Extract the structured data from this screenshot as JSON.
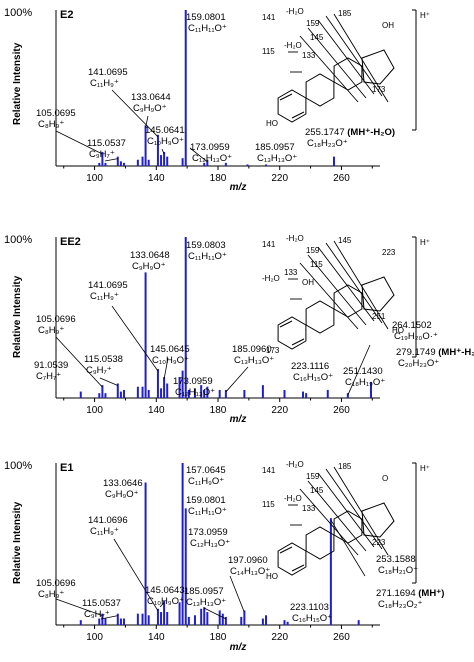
{
  "figure": {
    "x_axis_label": "m/z",
    "y_axis_label": "Relative Intensity",
    "hplus": "H⁺",
    "bar_color": "#1f1fcc"
  },
  "chart_data": [
    {
      "type": "bar",
      "name": "E2",
      "top_label": "100%",
      "xlim": [
        75,
        285
      ],
      "ylim": [
        0,
        100
      ],
      "xticks": [
        100,
        140,
        180,
        220,
        260
      ],
      "peaks": [
        {
          "mz": 103.05,
          "rel": 2
        },
        {
          "mz": 105.07,
          "rel": 9
        },
        {
          "mz": 107.05,
          "rel": 2
        },
        {
          "mz": 115.05,
          "rel": 6
        },
        {
          "mz": 117.07,
          "rel": 3
        },
        {
          "mz": 119.09,
          "rel": 2
        },
        {
          "mz": 128.06,
          "rel": 4
        },
        {
          "mz": 131.09,
          "rel": 6
        },
        {
          "mz": 133.06,
          "rel": 26
        },
        {
          "mz": 135.08,
          "rel": 4
        },
        {
          "mz": 141.07,
          "rel": 20
        },
        {
          "mz": 143.09,
          "rel": 7
        },
        {
          "mz": 145.06,
          "rel": 9
        },
        {
          "mz": 147.08,
          "rel": 6
        },
        {
          "mz": 157.06,
          "rel": 5
        },
        {
          "mz": 159.08,
          "rel": 100
        },
        {
          "mz": 171.08,
          "rel": 2
        },
        {
          "mz": 173.1,
          "rel": 4
        },
        {
          "mz": 185.1,
          "rel": 2
        },
        {
          "mz": 199.1,
          "rel": 1
        },
        {
          "mz": 211.1,
          "rel": 1
        },
        {
          "mz": 255.17,
          "rel": 6
        }
      ],
      "annotations": [
        {
          "mz_label": "159.0801",
          "formula": "C₁₁H₁₁O⁺"
        },
        {
          "mz_label": "141.0695",
          "formula": "C₁₁H₉⁺"
        },
        {
          "mz_label": "133.0644",
          "formula": "C₉H₉O⁺"
        },
        {
          "mz_label": "105.0695",
          "formula": "C₈H₉⁺"
        },
        {
          "mz_label": "145.0641",
          "formula": "C₁₀H₉O⁺"
        },
        {
          "mz_label": "115.0537",
          "formula": "C₉H₇⁺"
        },
        {
          "mz_label": "173.0959",
          "formula": "C₁₂H₁₃O⁺"
        },
        {
          "mz_label": "185.0957",
          "formula": "C₁₃H₁₃O⁺"
        },
        {
          "mz_label": "255.1747",
          "suffix": "(MH⁺-H₂O)",
          "formula": "C₁₈H₂₃O⁺"
        }
      ],
      "structure_labels": [
        "141",
        "-H₂O",
        "159",
        "185",
        "145",
        "115",
        "-H₂O",
        "133",
        "173",
        "OH",
        "HO"
      ]
    },
    {
      "type": "bar",
      "name": "EE2",
      "top_label": "100%",
      "xlim": [
        75,
        285
      ],
      "ylim": [
        0,
        100
      ],
      "xticks": [
        100,
        140,
        180,
        220,
        260
      ],
      "peaks": [
        {
          "mz": 91.05,
          "rel": 4
        },
        {
          "mz": 103.05,
          "rel": 3
        },
        {
          "mz": 105.07,
          "rel": 8
        },
        {
          "mz": 107.05,
          "rel": 3
        },
        {
          "mz": 115.05,
          "rel": 9
        },
        {
          "mz": 117.07,
          "rel": 4
        },
        {
          "mz": 119.05,
          "rel": 5
        },
        {
          "mz": 128.06,
          "rel": 7
        },
        {
          "mz": 131.09,
          "rel": 7
        },
        {
          "mz": 133.06,
          "rel": 78
        },
        {
          "mz": 135.08,
          "rel": 5
        },
        {
          "mz": 141.07,
          "rel": 18
        },
        {
          "mz": 143.09,
          "rel": 6
        },
        {
          "mz": 145.06,
          "rel": 13
        },
        {
          "mz": 147.08,
          "rel": 9
        },
        {
          "mz": 155.09,
          "rel": 13
        },
        {
          "mz": 157.06,
          "rel": 17
        },
        {
          "mz": 159.08,
          "rel": 100
        },
        {
          "mz": 161.1,
          "rel": 5
        },
        {
          "mz": 165.07,
          "rel": 6
        },
        {
          "mz": 169.1,
          "rel": 8
        },
        {
          "mz": 171.08,
          "rel": 5
        },
        {
          "mz": 173.1,
          "rel": 7
        },
        {
          "mz": 181.1,
          "rel": 5
        },
        {
          "mz": 185.1,
          "rel": 5
        },
        {
          "mz": 197.1,
          "rel": 5
        },
        {
          "mz": 209.1,
          "rel": 8
        },
        {
          "mz": 223.11,
          "rel": 5
        },
        {
          "mz": 235.1,
          "rel": 4
        },
        {
          "mz": 237.13,
          "rel": 3
        },
        {
          "mz": 251.14,
          "rel": 5
        },
        {
          "mz": 264.15,
          "rel": 3
        },
        {
          "mz": 279.17,
          "rel": 10
        }
      ],
      "annotations": [
        {
          "mz_label": "133.0648",
          "formula": "C₉H₉O⁺"
        },
        {
          "mz_label": "159.0803",
          "formula": "C₁₁H₁₁O⁺"
        },
        {
          "mz_label": "141.0695",
          "formula": "C₁₁H₉⁺"
        },
        {
          "mz_label": "105.0696",
          "formula": "C₈H₉⁺"
        },
        {
          "mz_label": "145.0645",
          "formula": "C₁₀H₉O⁺"
        },
        {
          "mz_label": "115.0538",
          "formula": "C₉H₇⁺"
        },
        {
          "mz_label": "91.0539",
          "formula": "C₇H₇⁺"
        },
        {
          "mz_label": "173.0959",
          "formula": "C₁₂H₁₃O⁺"
        },
        {
          "mz_label": "185.0960",
          "formula": "C₁₃H₁₃O⁺"
        },
        {
          "mz_label": "223.1116",
          "formula": "C₁₆H₁₅O⁺"
        },
        {
          "mz_label": "251.1430",
          "formula": "C₁₈H₁₉O⁺"
        },
        {
          "mz_label": "264.1502",
          "formula": "C₁₉H₂₀O·⁺"
        },
        {
          "mz_label": "279.1749",
          "suffix": "(MH⁺-H₂O)",
          "formula": "C₂₀H₂₃O⁺"
        }
      ],
      "structure_labels": [
        "141",
        "-H₂O",
        "159",
        "145",
        "115",
        "-H₂O",
        "133",
        "OH",
        "251",
        "223",
        "173",
        "HO"
      ]
    },
    {
      "type": "bar",
      "name": "E1",
      "top_label": "100%",
      "xlim": [
        75,
        285
      ],
      "ylim": [
        0,
        100
      ],
      "xticks": [
        100,
        140,
        180,
        220,
        260
      ],
      "peaks": [
        {
          "mz": 91.05,
          "rel": 3
        },
        {
          "mz": 103.05,
          "rel": 4
        },
        {
          "mz": 105.07,
          "rel": 7
        },
        {
          "mz": 107.05,
          "rel": 4
        },
        {
          "mz": 115.05,
          "rel": 7
        },
        {
          "mz": 117.07,
          "rel": 4
        },
        {
          "mz": 119.05,
          "rel": 4
        },
        {
          "mz": 128.06,
          "rel": 7
        },
        {
          "mz": 131.09,
          "rel": 7
        },
        {
          "mz": 133.06,
          "rel": 88
        },
        {
          "mz": 135.08,
          "rel": 6
        },
        {
          "mz": 141.07,
          "rel": 10
        },
        {
          "mz": 143.09,
          "rel": 8
        },
        {
          "mz": 145.06,
          "rel": 15
        },
        {
          "mz": 147.08,
          "rel": 8
        },
        {
          "mz": 155.09,
          "rel": 14
        },
        {
          "mz": 157.06,
          "rel": 100
        },
        {
          "mz": 159.08,
          "rel": 72
        },
        {
          "mz": 161.1,
          "rel": 5
        },
        {
          "mz": 165.07,
          "rel": 6
        },
        {
          "mz": 169.1,
          "rel": 10
        },
        {
          "mz": 171.08,
          "rel": 11
        },
        {
          "mz": 173.1,
          "rel": 8
        },
        {
          "mz": 181.1,
          "rel": 9
        },
        {
          "mz": 183.1,
          "rel": 7
        },
        {
          "mz": 185.1,
          "rel": 5
        },
        {
          "mz": 195.08,
          "rel": 5
        },
        {
          "mz": 197.1,
          "rel": 9
        },
        {
          "mz": 209.1,
          "rel": 4
        },
        {
          "mz": 211.11,
          "rel": 6
        },
        {
          "mz": 223.11,
          "rel": 3
        },
        {
          "mz": 225.13,
          "rel": 2
        },
        {
          "mz": 253.16,
          "rel": 66
        },
        {
          "mz": 271.17,
          "rel": 3
        }
      ],
      "annotations": [
        {
          "mz_label": "157.0645",
          "formula": "C₁₁H₉O⁺"
        },
        {
          "mz_label": "133.0646",
          "formula": "C₉H₉O⁺"
        },
        {
          "mz_label": "159.0801",
          "formula": "C₁₁H₁₁O⁺"
        },
        {
          "mz_label": "141.0696",
          "formula": "C₁₁H₉⁺"
        },
        {
          "mz_label": "173.0959",
          "formula": "C₁₂H₁₃O⁺"
        },
        {
          "mz_label": "197.0960",
          "formula": "C₁₄H₁₃O⁺"
        },
        {
          "mz_label": "105.0696",
          "formula": "C₈H₉⁺"
        },
        {
          "mz_label": "145.0643",
          "formula": "C₁₀H₉O⁺"
        },
        {
          "mz_label": "185.0957",
          "formula": "C₁₃H₁₃O⁺"
        },
        {
          "mz_label": "115.0537",
          "formula": "C₉H₇⁺"
        },
        {
          "mz_label": "223.1103",
          "formula": "C₁₆H₁₅O⁺"
        },
        {
          "mz_label": "253.1588",
          "formula": "C₁₈H₂₁O⁺"
        },
        {
          "mz_label": "271.1694",
          "suffix": "(MH⁺)",
          "formula": "C₁₈H₂₃O₂⁺"
        }
      ],
      "structure_labels": [
        "141",
        "-H₂O",
        "159",
        "185",
        "145",
        "115",
        "-H₂O",
        "133",
        "223",
        "O",
        "HO"
      ]
    }
  ]
}
